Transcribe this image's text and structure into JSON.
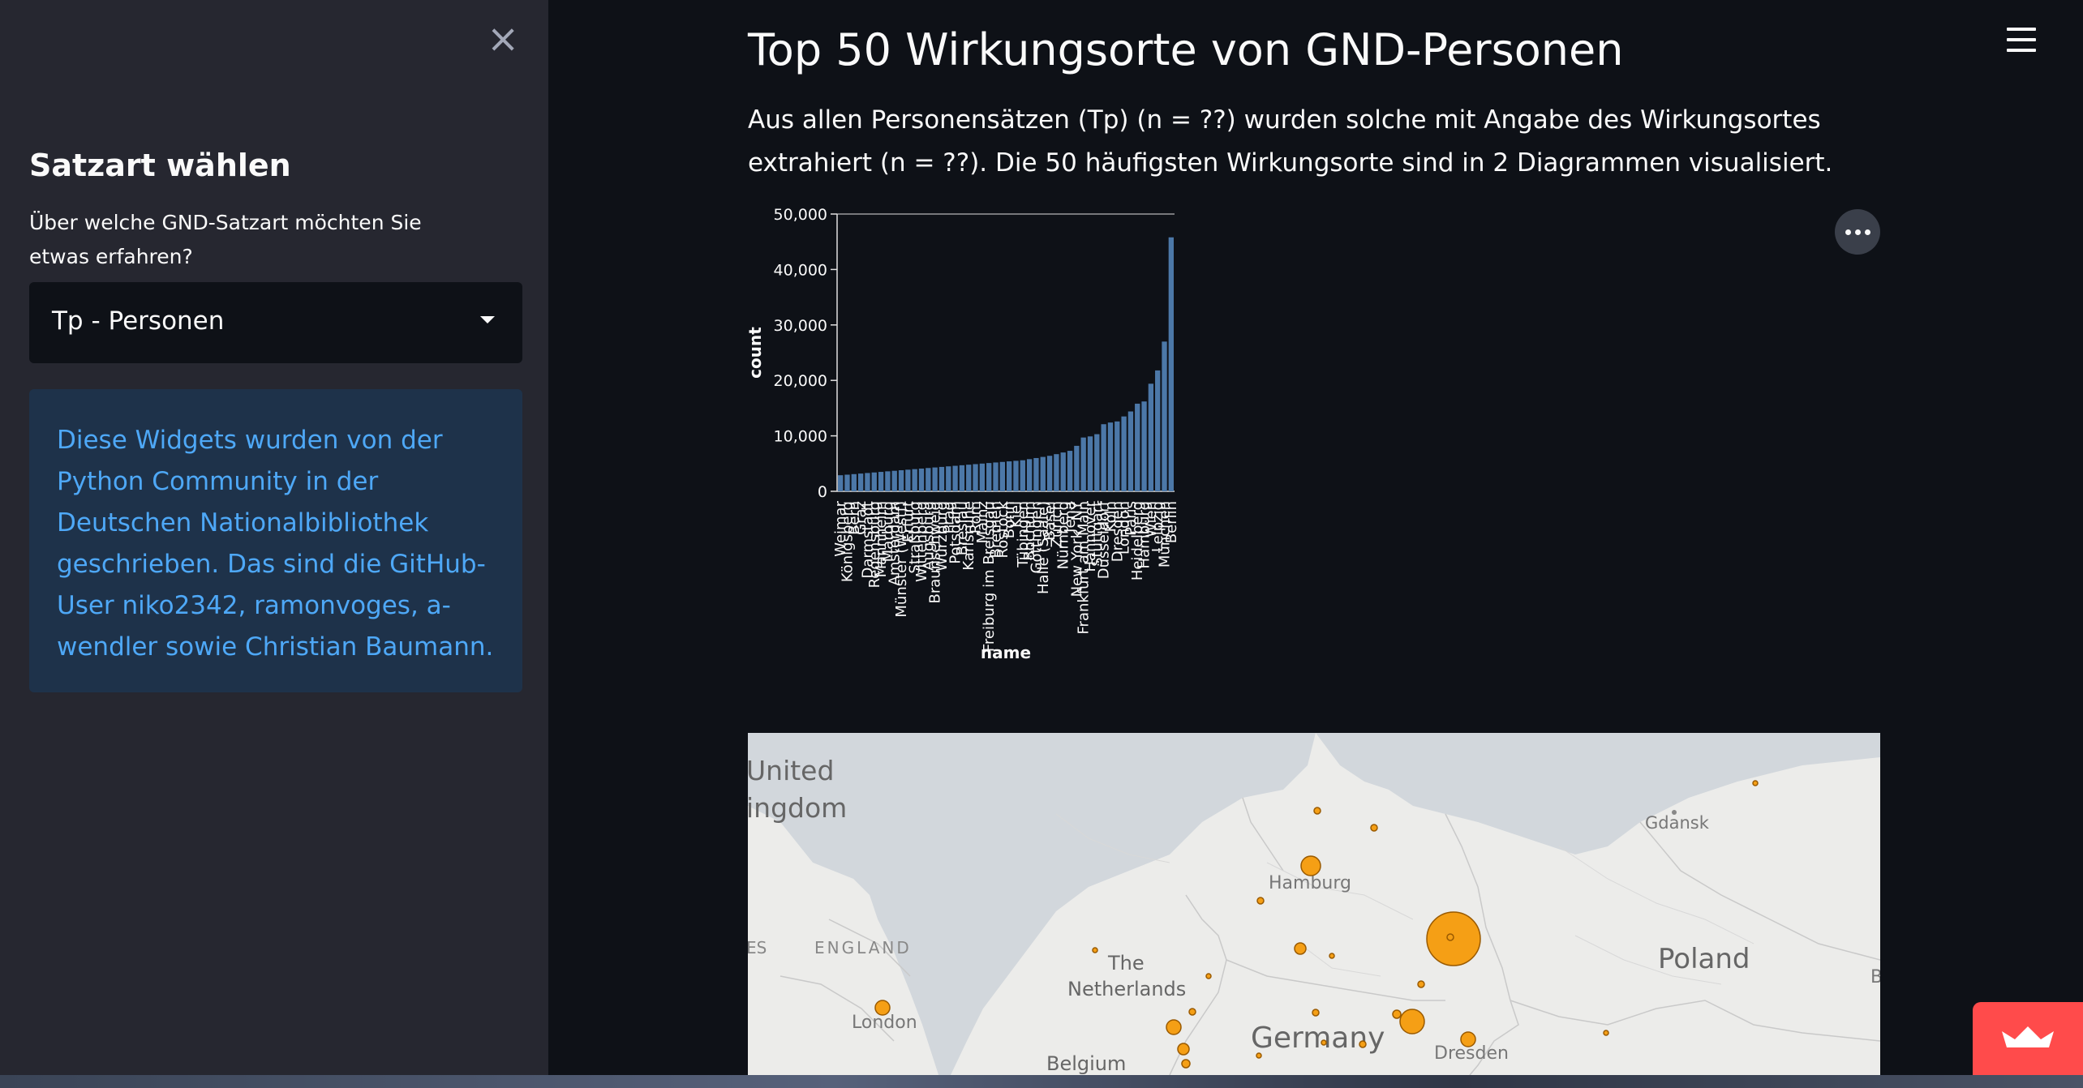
{
  "sidebar": {
    "close_glyph": "×",
    "heading": "Satzart wählen",
    "select_label": "Über welche GND-Satzart möchten Sie etwas erfahren?",
    "select_value": "Tp - Personen",
    "info_text": "Diese Widgets wurden von der Python Community in der Deutschen Nationalbibliothek geschrieben. Das sind die GitHub-User niko2342, ramonvoges, a-wendler sowie Christian Baumann."
  },
  "main": {
    "title": "Top 50 Wirkungsorte von GND-Personen",
    "intro": "Aus allen Personensätzen (Tp) (n = ??) wurden solche mit Angabe des Wirkungsortes extrahiert (n = ??). Die 50 häufigsten Wirkungsorte sind in 2 Diagrammen visualisiert."
  },
  "icons": {
    "close": "close-icon",
    "menu": "hamburger-menu-icon",
    "chart_actions": "more-horizontal-icon",
    "select_caret": "caret-down-icon",
    "fab": "crown-icon"
  },
  "colors": {
    "app_bg": "#0e1117",
    "sidebar_bg": "#262730",
    "accent": "#ff4b4b",
    "bar": "#4c78a8",
    "info_bg": "#1e324a",
    "info_text": "#4ea8f7",
    "map_bubble": "#f59f15"
  },
  "chart_data": {
    "type": "bar",
    "xlabel": "name",
    "ylabel": "count",
    "ylim": [
      0,
      50000
    ],
    "yticks": [
      "0",
      "10,000",
      "20,000",
      "30,000",
      "40,000",
      "50,000"
    ],
    "categories": [
      "Weimar",
      "Königsberg",
      "Bern",
      "Graz",
      "Darmstadt",
      "Regensburg",
      "Mannheim",
      "Marburg",
      "Amsterdam",
      "Münster (Westf)",
      "Erfurt",
      "Straßburg",
      "Wittenberg",
      "Augsburg",
      "Braunschweig",
      "Würzburg",
      "Prag",
      "Potsdam",
      "Breslau",
      "Karlsruhe",
      "Rom",
      "Mainz",
      "Freiburg im Breisgau",
      "Bremen",
      "Rostock",
      "Bonn",
      "Kiel",
      "Tübingen",
      "Bochum",
      "Göttingen",
      "Halle (Saale)",
      "Basel",
      "Zürich",
      "Nürnberg",
      "Jena",
      "New York, NY",
      "Frankfurt am Main",
      "Hannover",
      "Stuttgart",
      "Düsseldorf",
      "Köln",
      "Dresden",
      "London",
      "Paris",
      "Heidelberg",
      "Hamburg",
      "Wien",
      "Leipzig",
      "München",
      "Berlin"
    ],
    "values": [
      2900,
      3000,
      3100,
      3200,
      3300,
      3400,
      3500,
      3600,
      3700,
      3800,
      3900,
      4000,
      4100,
      4200,
      4300,
      4400,
      4500,
      4600,
      4700,
      4800,
      4900,
      5000,
      5100,
      5200,
      5300,
      5400,
      5500,
      5600,
      5800,
      6000,
      6200,
      6400,
      6700,
      7000,
      7300,
      8200,
      9700,
      9900,
      10300,
      12100,
      12400,
      12600,
      13500,
      14400,
      15800,
      16200,
      19400,
      21800,
      27000,
      45800
    ]
  },
  "map": {
    "labels": [
      "United",
      "ingdom",
      "ENGLAND",
      "ES",
      "London",
      "The",
      "Netherlands",
      "Belgium",
      "Germany",
      "Hamburg",
      "Dresden",
      "Poland",
      "Gdansk",
      "B"
    ],
    "bubble_legend_note": ""
  }
}
